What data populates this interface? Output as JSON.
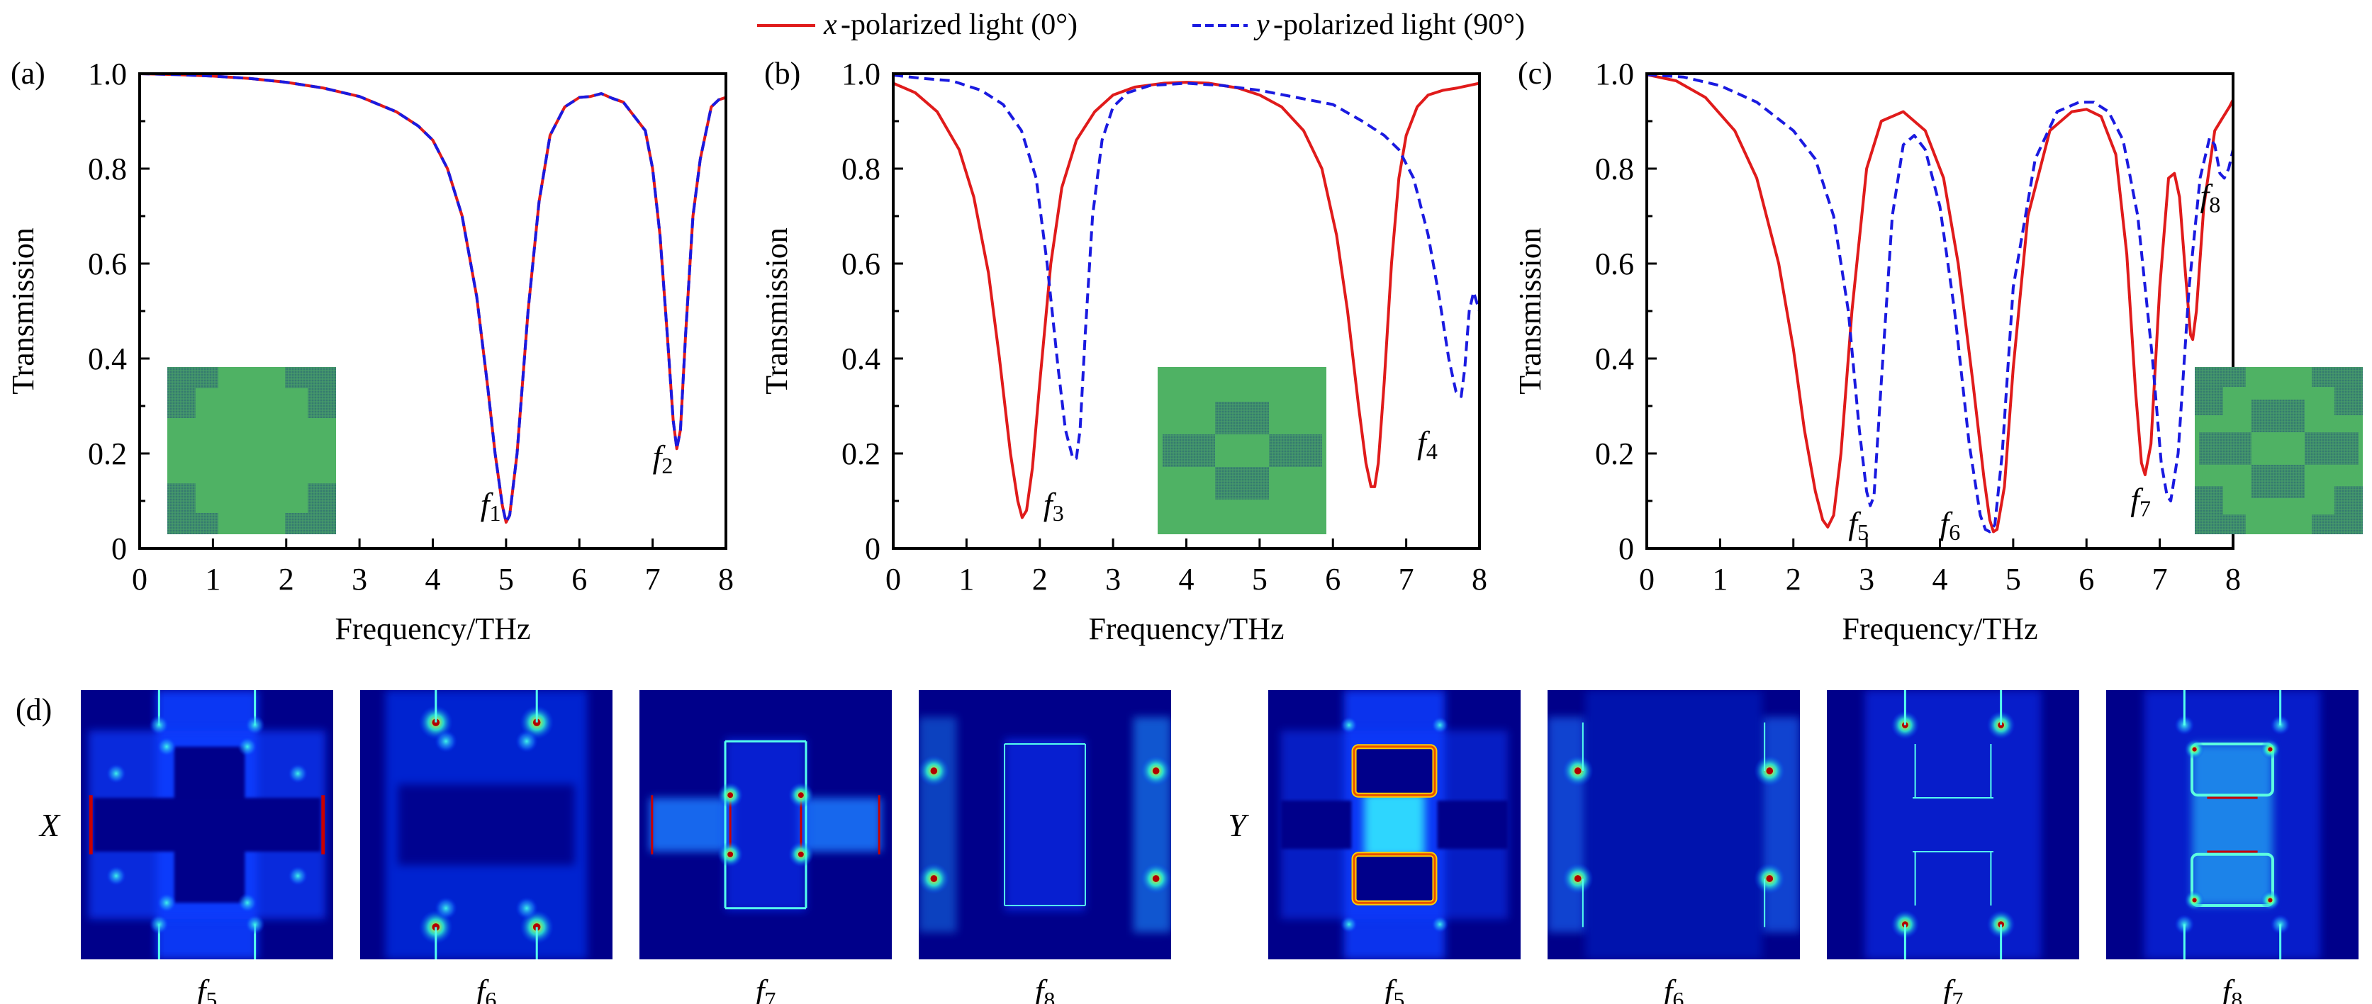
{
  "legend": {
    "items": [
      {
        "var": "x",
        "text": "-polarized light (0°)",
        "color": "#e01b1b",
        "style": "solid"
      },
      {
        "var": "y",
        "text": "-polarized light (90°)",
        "color": "#1a1ae0",
        "style": "dashed"
      }
    ]
  },
  "colors": {
    "x_series": "#e01b1b",
    "y_series": "#1a1ae0",
    "metal_green": "#4fb264",
    "slot_dark": "#3d8b6d",
    "field_bg": "#00007f"
  },
  "chart_data": [
    {
      "panel": "(a)",
      "type": "line",
      "xlabel": "Frequency/THz",
      "ylabel": "Transmission",
      "xlim": [
        0,
        8
      ],
      "ylim": [
        0,
        1.0
      ],
      "xticks": [
        "0",
        "1",
        "2",
        "3",
        "4",
        "5",
        "6",
        "7",
        "8"
      ],
      "yticks": [
        "0",
        "0.2",
        "0.4",
        "0.6",
        "0.8",
        "1.0"
      ],
      "grid": false,
      "inset": "cross-unit-cell",
      "annotations": [
        {
          "name": "f",
          "sub": "1",
          "x": 4.65,
          "y": 0.07
        },
        {
          "name": "f",
          "sub": "2",
          "x": 7.0,
          "y": 0.17
        }
      ],
      "series": [
        {
          "name": "x-polarized light (0°)",
          "style": "solid",
          "x": [
            0,
            0.5,
            1,
            1.5,
            2,
            2.5,
            3,
            3.5,
            3.8,
            4,
            4.2,
            4.4,
            4.6,
            4.75,
            4.85,
            4.95,
            5.0,
            5.05,
            5.15,
            5.3,
            5.45,
            5.6,
            5.8,
            6.0,
            6.15,
            6.3,
            6.45,
            6.6,
            6.75,
            6.9,
            7.0,
            7.1,
            7.2,
            7.28,
            7.33,
            7.38,
            7.45,
            7.55,
            7.65,
            7.8,
            7.9,
            8.0
          ],
          "y": [
            1.0,
            0.998,
            0.995,
            0.99,
            0.982,
            0.97,
            0.952,
            0.92,
            0.89,
            0.86,
            0.8,
            0.7,
            0.53,
            0.34,
            0.2,
            0.09,
            0.055,
            0.07,
            0.2,
            0.5,
            0.73,
            0.87,
            0.93,
            0.95,
            0.952,
            0.958,
            0.948,
            0.94,
            0.91,
            0.88,
            0.8,
            0.66,
            0.45,
            0.27,
            0.21,
            0.25,
            0.45,
            0.7,
            0.82,
            0.93,
            0.945,
            0.95
          ]
        },
        {
          "name": "y-polarized light (90°)",
          "style": "dashed",
          "x": [
            0,
            0.5,
            1,
            1.5,
            2,
            2.5,
            3,
            3.5,
            3.8,
            4,
            4.2,
            4.4,
            4.6,
            4.75,
            4.85,
            4.95,
            5.0,
            5.05,
            5.15,
            5.3,
            5.45,
            5.6,
            5.8,
            6.0,
            6.15,
            6.3,
            6.45,
            6.6,
            6.75,
            6.9,
            7.0,
            7.1,
            7.2,
            7.28,
            7.33,
            7.38,
            7.45,
            7.55,
            7.65,
            7.8,
            7.9,
            8.0
          ],
          "y": [
            1.0,
            0.998,
            0.995,
            0.99,
            0.982,
            0.97,
            0.952,
            0.92,
            0.89,
            0.86,
            0.8,
            0.7,
            0.53,
            0.34,
            0.2,
            0.09,
            0.055,
            0.07,
            0.2,
            0.5,
            0.73,
            0.87,
            0.93,
            0.95,
            0.952,
            0.958,
            0.948,
            0.94,
            0.91,
            0.88,
            0.8,
            0.66,
            0.45,
            0.27,
            0.21,
            0.25,
            0.45,
            0.7,
            0.82,
            0.93,
            0.945,
            0.95
          ]
        }
      ]
    },
    {
      "panel": "(b)",
      "type": "line",
      "xlabel": "Frequency/THz",
      "ylabel": "Transmission",
      "xlim": [
        0,
        8
      ],
      "ylim": [
        0,
        1.0
      ],
      "xticks": [
        "0",
        "1",
        "2",
        "3",
        "4",
        "5",
        "6",
        "7",
        "8"
      ],
      "yticks": [
        "0",
        "0.2",
        "0.4",
        "0.6",
        "0.8",
        "1.0"
      ],
      "grid": false,
      "inset": "plus-slot-unit-cell",
      "annotations": [
        {
          "name": "f",
          "sub": "3",
          "x": 2.05,
          "y": 0.07
        },
        {
          "name": "f",
          "sub": "4",
          "x": 7.15,
          "y": 0.2
        }
      ],
      "series": [
        {
          "name": "x-polarized light (0°)",
          "style": "solid",
          "x": [
            0,
            0.3,
            0.6,
            0.9,
            1.1,
            1.3,
            1.45,
            1.6,
            1.7,
            1.76,
            1.82,
            1.9,
            2.0,
            2.15,
            2.3,
            2.5,
            2.75,
            3.0,
            3.3,
            3.7,
            4.0,
            4.3,
            4.7,
            5.0,
            5.3,
            5.6,
            5.85,
            6.05,
            6.2,
            6.35,
            6.45,
            6.52,
            6.57,
            6.62,
            6.7,
            6.8,
            6.9,
            7.0,
            7.15,
            7.3,
            7.5,
            7.7,
            8.0
          ],
          "y": [
            0.98,
            0.96,
            0.92,
            0.84,
            0.74,
            0.58,
            0.4,
            0.2,
            0.1,
            0.065,
            0.08,
            0.17,
            0.35,
            0.6,
            0.76,
            0.86,
            0.92,
            0.955,
            0.972,
            0.98,
            0.982,
            0.98,
            0.97,
            0.955,
            0.93,
            0.88,
            0.8,
            0.66,
            0.5,
            0.3,
            0.18,
            0.13,
            0.13,
            0.18,
            0.35,
            0.6,
            0.78,
            0.87,
            0.93,
            0.955,
            0.965,
            0.97,
            0.98
          ]
        },
        {
          "name": "y-polarized light (90°)",
          "style": "dashed",
          "x": [
            0,
            0.4,
            0.8,
            1.2,
            1.5,
            1.75,
            1.95,
            2.1,
            2.25,
            2.35,
            2.45,
            2.5,
            2.55,
            2.62,
            2.72,
            2.85,
            3.0,
            3.2,
            3.5,
            4.0,
            4.5,
            5.0,
            5.5,
            6.0,
            6.4,
            6.7,
            6.9,
            7.1,
            7.3,
            7.45,
            7.58,
            7.68,
            7.75,
            7.8,
            7.86,
            7.92,
            8.0
          ],
          "y": [
            0.997,
            0.99,
            0.985,
            0.965,
            0.935,
            0.88,
            0.78,
            0.6,
            0.38,
            0.25,
            0.19,
            0.19,
            0.25,
            0.45,
            0.7,
            0.86,
            0.93,
            0.96,
            0.975,
            0.98,
            0.975,
            0.965,
            0.95,
            0.935,
            0.9,
            0.87,
            0.84,
            0.78,
            0.66,
            0.53,
            0.4,
            0.33,
            0.32,
            0.38,
            0.5,
            0.54,
            0.5
          ]
        }
      ]
    },
    {
      "panel": "(c)",
      "type": "line",
      "xlabel": "Frequency/THz",
      "ylabel": "Transmission",
      "xlim": [
        0,
        8
      ],
      "ylim": [
        0,
        1.0
      ],
      "xticks": [
        "0",
        "1",
        "2",
        "3",
        "4",
        "5",
        "6",
        "7",
        "8"
      ],
      "yticks": [
        "0",
        "0.2",
        "0.4",
        "0.6",
        "0.8",
        "1.0"
      ],
      "grid": false,
      "inset": "combined-unit-cell",
      "annotations": [
        {
          "name": "f",
          "sub": "5",
          "x": 2.75,
          "y": 0.03
        },
        {
          "name": "f",
          "sub": "6",
          "x": 4.0,
          "y": 0.03
        },
        {
          "name": "f",
          "sub": "7",
          "x": 6.6,
          "y": 0.08
        },
        {
          "name": "f",
          "sub": "8",
          "x": 7.55,
          "y": 0.72
        }
      ],
      "series": [
        {
          "name": "x-polarized light (0°)",
          "style": "solid",
          "x": [
            0,
            0.4,
            0.8,
            1.2,
            1.5,
            1.8,
            2.0,
            2.15,
            2.3,
            2.4,
            2.47,
            2.55,
            2.65,
            2.8,
            3.0,
            3.2,
            3.5,
            3.8,
            4.05,
            4.25,
            4.45,
            4.6,
            4.68,
            4.73,
            4.78,
            4.88,
            5.0,
            5.2,
            5.5,
            5.8,
            6.0,
            6.2,
            6.4,
            6.55,
            6.67,
            6.75,
            6.8,
            6.88,
            7.0,
            7.12,
            7.2,
            7.27,
            7.35,
            7.42,
            7.45,
            7.5,
            7.6,
            7.75,
            7.85,
            7.95,
            8.0
          ],
          "y": [
            0.998,
            0.985,
            0.95,
            0.88,
            0.78,
            0.6,
            0.42,
            0.25,
            0.12,
            0.06,
            0.045,
            0.07,
            0.2,
            0.5,
            0.8,
            0.9,
            0.92,
            0.88,
            0.78,
            0.6,
            0.35,
            0.15,
            0.06,
            0.035,
            0.04,
            0.13,
            0.38,
            0.7,
            0.88,
            0.92,
            0.925,
            0.91,
            0.83,
            0.62,
            0.33,
            0.18,
            0.155,
            0.22,
            0.55,
            0.78,
            0.79,
            0.74,
            0.58,
            0.45,
            0.44,
            0.5,
            0.72,
            0.88,
            0.905,
            0.93,
            0.945
          ]
        },
        {
          "name": "y-polarized light (90°)",
          "style": "dashed",
          "x": [
            0,
            0.5,
            1,
            1.5,
            2.0,
            2.3,
            2.55,
            2.75,
            2.9,
            3.0,
            3.05,
            3.1,
            3.2,
            3.35,
            3.5,
            3.65,
            3.8,
            4.0,
            4.2,
            4.4,
            4.55,
            4.62,
            4.68,
            4.75,
            4.85,
            5.0,
            5.3,
            5.6,
            5.9,
            6.1,
            6.3,
            6.5,
            6.7,
            6.9,
            7.02,
            7.1,
            7.15,
            7.25,
            7.4,
            7.55,
            7.68,
            7.75,
            7.82,
            7.88,
            7.94,
            8.0
          ],
          "y": [
            0.998,
            0.993,
            0.975,
            0.94,
            0.88,
            0.82,
            0.7,
            0.5,
            0.25,
            0.12,
            0.09,
            0.11,
            0.35,
            0.7,
            0.85,
            0.87,
            0.84,
            0.72,
            0.5,
            0.22,
            0.07,
            0.04,
            0.035,
            0.05,
            0.2,
            0.55,
            0.82,
            0.92,
            0.94,
            0.94,
            0.92,
            0.86,
            0.7,
            0.4,
            0.18,
            0.11,
            0.1,
            0.2,
            0.55,
            0.78,
            0.865,
            0.85,
            0.79,
            0.78,
            0.8,
            0.84
          ]
        }
      ]
    }
  ],
  "field_maps": {
    "panel": "(d)",
    "rows": [
      {
        "label": "X",
        "maps": [
          {
            "label_var": "f",
            "label_sub": "5",
            "pattern": "x-f5"
          },
          {
            "label_var": "f",
            "label_sub": "6",
            "pattern": "x-f6"
          },
          {
            "label_var": "f",
            "label_sub": "7",
            "pattern": "x-f7"
          },
          {
            "label_var": "f",
            "label_sub": "8",
            "pattern": "x-f8"
          }
        ]
      },
      {
        "label": "Y",
        "maps": [
          {
            "label_var": "f",
            "label_sub": "5",
            "pattern": "y-f5"
          },
          {
            "label_var": "f",
            "label_sub": "6",
            "pattern": "y-f6"
          },
          {
            "label_var": "f",
            "label_sub": "7",
            "pattern": "y-f7"
          },
          {
            "label_var": "f",
            "label_sub": "8",
            "pattern": "y-f8"
          }
        ]
      }
    ]
  }
}
